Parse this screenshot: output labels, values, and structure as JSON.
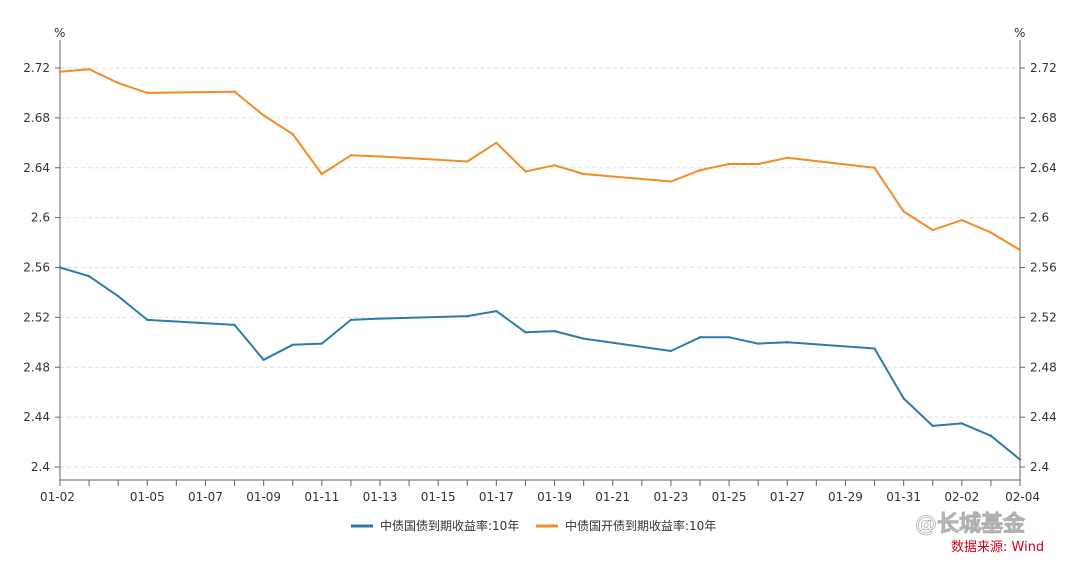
{
  "chart_data": {
    "type": "line",
    "title": "",
    "y_unit_left": "%",
    "y_unit_right": "%",
    "ylim": [
      2.4,
      2.72
    ],
    "yticks": [
      "2.72",
      "2.68",
      "2.64",
      "2.6",
      "2.56",
      "2.52",
      "2.48",
      "2.44",
      "2.4"
    ],
    "ytick_values": [
      2.72,
      2.68,
      2.64,
      2.6,
      2.56,
      2.52,
      2.48,
      2.44,
      2.4
    ],
    "xticks": [
      "01-02",
      "01-05",
      "01-07",
      "01-09",
      "01-11",
      "01-13",
      "01-15",
      "01-17",
      "01-19",
      "01-21",
      "01-23",
      "01-25",
      "01-27",
      "01-29",
      "01-31",
      "02-02",
      "02-04"
    ],
    "x_range_days": [
      0,
      33
    ],
    "grid": true,
    "series": [
      {
        "name": "中债国债到期收益率:10年",
        "color": "#2e7bab",
        "x": [
          0,
          1,
          2,
          3,
          6,
          7,
          8,
          9,
          10,
          11,
          14,
          15,
          16,
          17,
          18,
          21,
          22,
          23,
          24,
          25,
          28,
          29,
          30,
          31,
          32,
          33
        ],
        "values": [
          2.56,
          2.553,
          2.537,
          2.518,
          2.514,
          2.486,
          2.498,
          2.499,
          2.518,
          2.519,
          2.521,
          2.525,
          2.508,
          2.509,
          2.503,
          2.493,
          2.504,
          2.504,
          2.499,
          2.5,
          2.495,
          2.455,
          2.433,
          2.435,
          2.425,
          2.406
        ]
      },
      {
        "name": "中债国开债到期收益率:10年",
        "color": "#f28c28",
        "x": [
          0,
          1,
          2,
          3,
          6,
          7,
          8,
          9,
          10,
          11,
          14,
          15,
          16,
          17,
          18,
          21,
          22,
          23,
          24,
          25,
          28,
          29,
          30,
          31,
          32,
          33
        ],
        "values": [
          2.717,
          2.719,
          2.708,
          2.7,
          2.701,
          2.682,
          2.667,
          2.635,
          2.65,
          2.649,
          2.645,
          2.66,
          2.637,
          2.642,
          2.635,
          2.629,
          2.638,
          2.643,
          2.643,
          2.648,
          2.64,
          2.605,
          2.59,
          2.598,
          2.588,
          2.574
        ]
      }
    ]
  },
  "watermark": "@长城基金",
  "source_note": "数据来源: Wind"
}
